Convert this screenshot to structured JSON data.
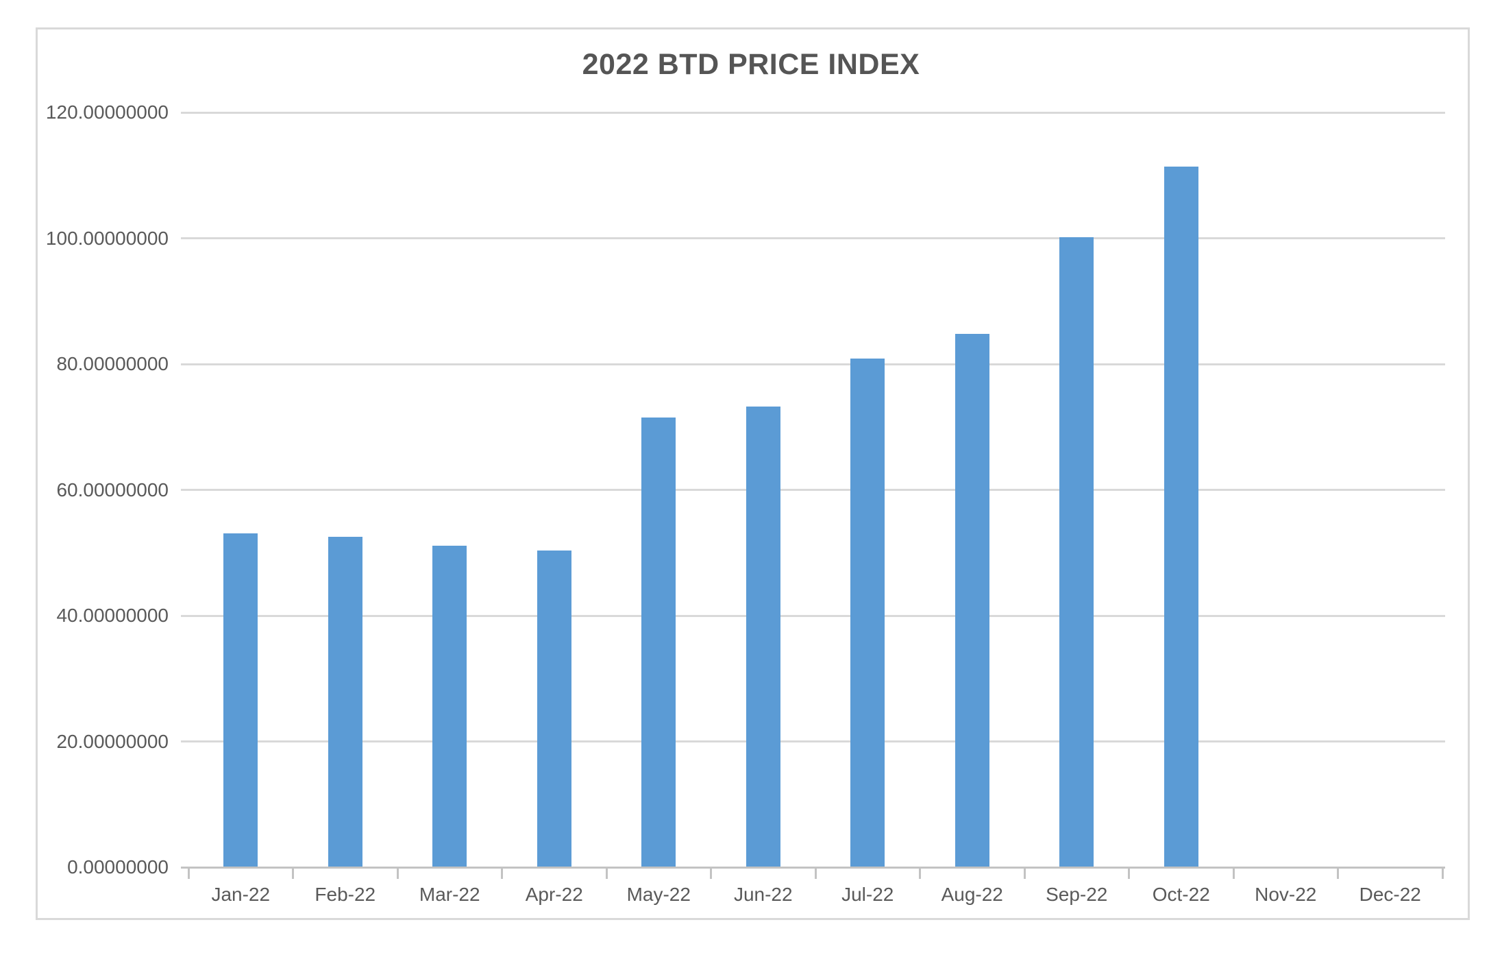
{
  "chart_data": {
    "type": "bar",
    "title": "2022 BTD PRICE INDEX",
    "xlabel": "",
    "ylabel": "",
    "categories": [
      "Jan-22",
      "Feb-22",
      "Mar-22",
      "Apr-22",
      "May-22",
      "Jun-22",
      "Jul-22",
      "Aug-22",
      "Sep-22",
      "Oct-22",
      "Nov-22",
      "Dec-22"
    ],
    "values": [
      53.1,
      52.5,
      51.1,
      50.4,
      71.5,
      73.2,
      80.9,
      84.8,
      100.2,
      111.4,
      null,
      null
    ],
    "ylim": [
      0,
      120
    ],
    "ytick_step": 20,
    "ytick_labels": [
      "0.00000000",
      "20.00000000",
      "40.00000000",
      "60.00000000",
      "80.00000000",
      "100.00000000",
      "120.00000000"
    ],
    "grid": true,
    "legend": "none",
    "colors": {
      "bar_fill": "#5b9bd5",
      "gridline": "#d9d9d9",
      "axis_line": "#c3c3c3",
      "tick_mark": "#c3c3c3",
      "label_text": "#595959",
      "title_text": "#555555",
      "frame_border": "#d9d9d9",
      "background": "#ffffff"
    }
  }
}
